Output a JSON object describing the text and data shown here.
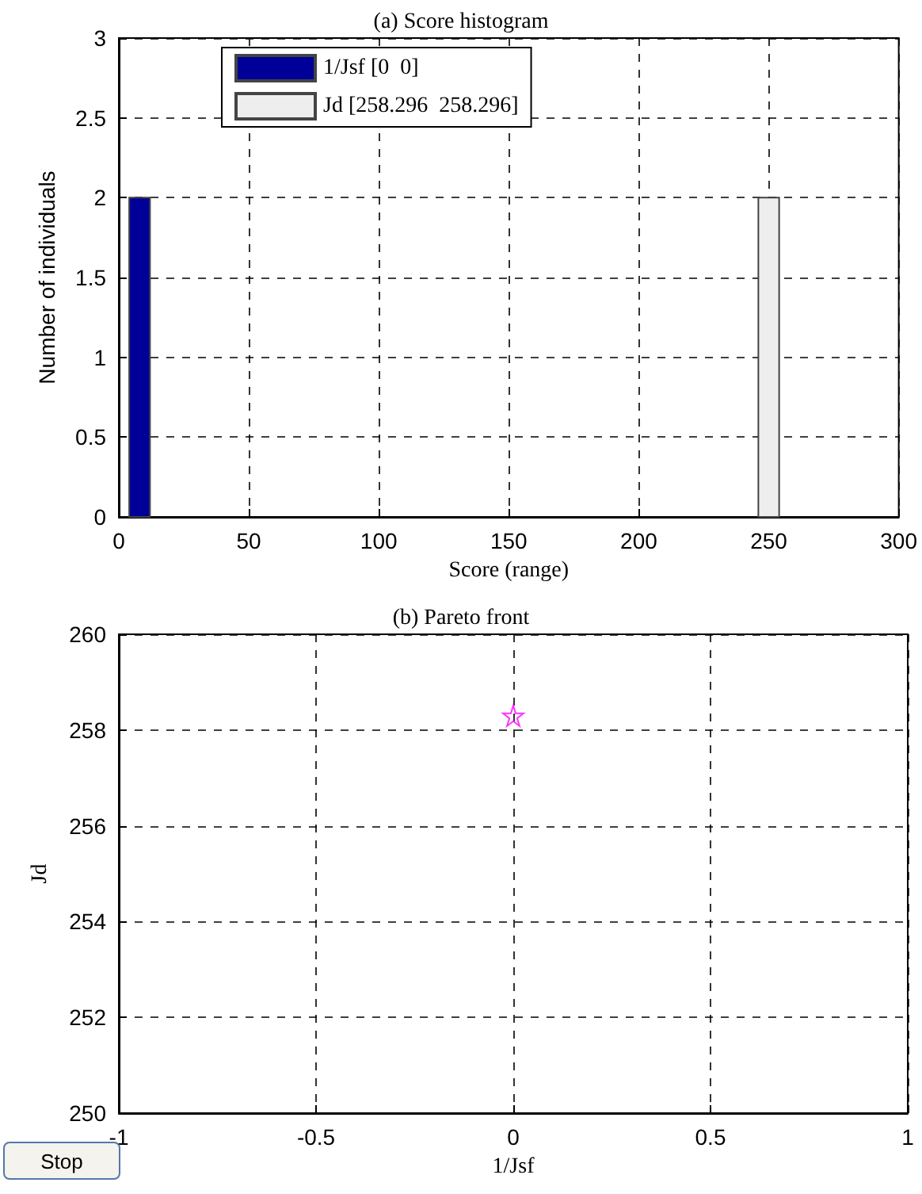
{
  "chart_data": [
    {
      "type": "histogram",
      "title": "(a) Score histogram",
      "xlabel": "Score (range)",
      "ylabel": "Number of individuals",
      "xlim": [
        0,
        300
      ],
      "xticks": [
        0,
        50,
        100,
        150,
        200,
        250,
        300
      ],
      "ylim": [
        0,
        3
      ],
      "yticks": [
        0,
        0.5,
        1,
        1.5,
        2,
        2.5,
        3
      ],
      "grid": true,
      "legend": "top",
      "bins": [
        4,
        12,
        246,
        254
      ],
      "series": [
        {
          "name": "1/Jsf [0  0]",
          "color": "#000099",
          "values": [
            2,
            0,
            0
          ]
        },
        {
          "name": "Jd [258.296  258.296]",
          "color": "#eeeeee",
          "values": [
            0,
            0,
            2
          ]
        }
      ]
    },
    {
      "type": "scatter",
      "title": "(b) Pareto front",
      "xlabel": "1/Jsf",
      "ylabel": "Jd",
      "xlim": [
        -1,
        1
      ],
      "xticks": [
        -1,
        -0.5,
        0,
        0.5,
        1
      ],
      "ylim": [
        250,
        260
      ],
      "yticks": [
        250,
        252,
        254,
        256,
        258,
        260
      ],
      "grid": true,
      "marker": "star",
      "annotations": [
        "Stop"
      ],
      "series": [
        {
          "color": "#ff00ff",
          "x": [
            0
          ],
          "values": [
            258.3
          ]
        }
      ]
    }
  ]
}
